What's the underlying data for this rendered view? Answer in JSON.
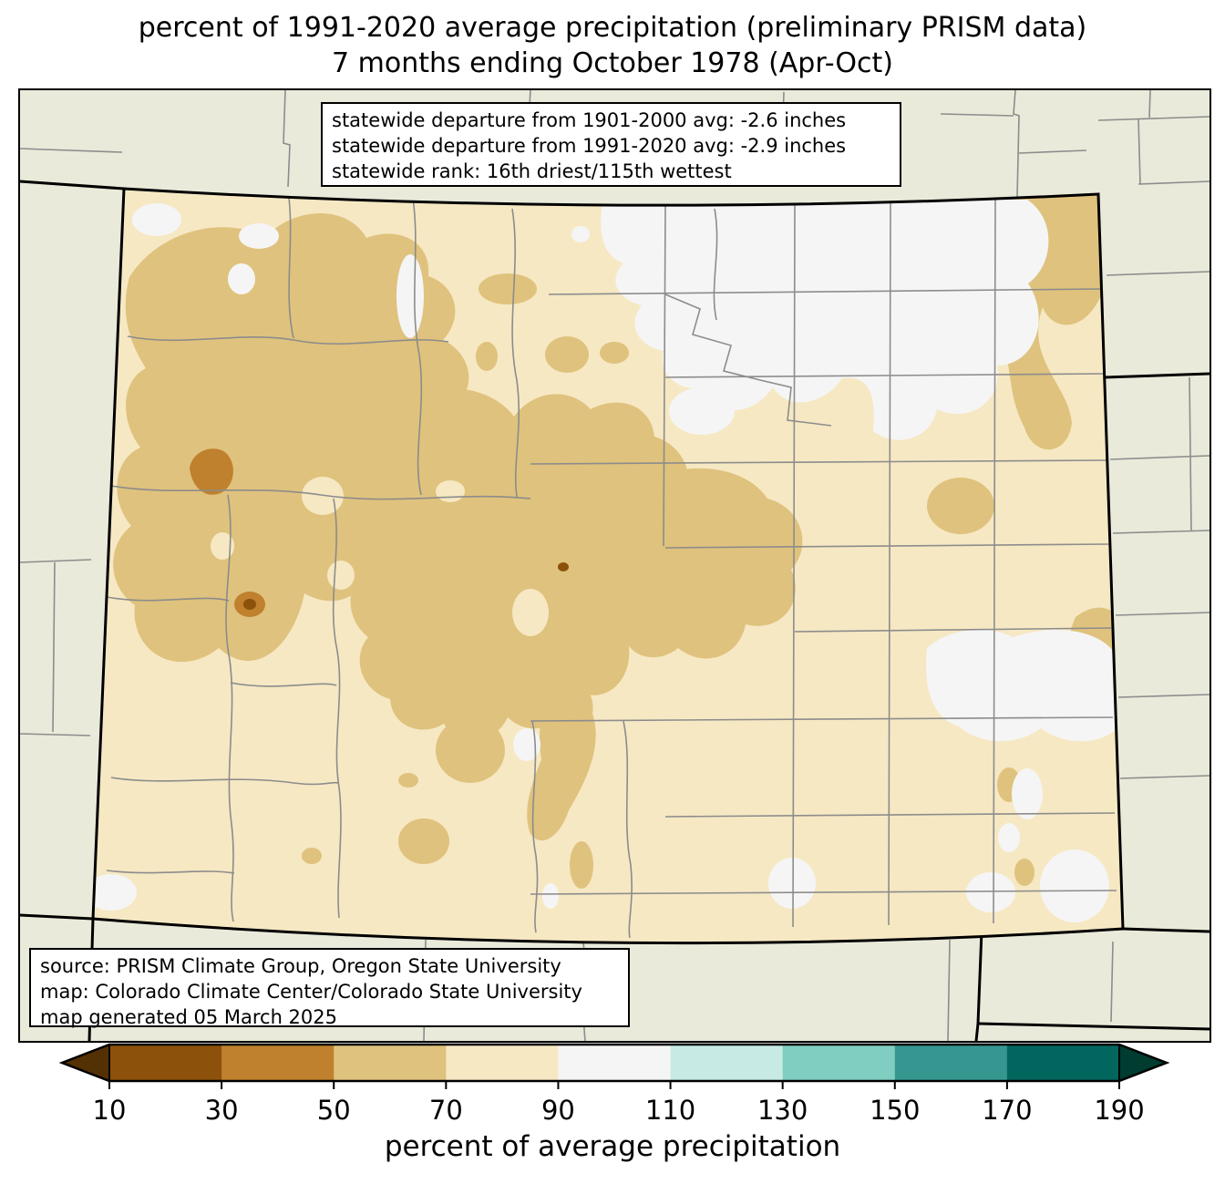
{
  "title": {
    "line1": "percent of 1991-2020 average precipitation (preliminary PRISM data)",
    "line2": "7 months ending October 1978 (Apr-Oct)"
  },
  "stats_box": {
    "lines": [
      "statewide departure from 1901-2000 avg: -2.6 inches",
      "statewide departure from 1991-2020 avg: -2.9 inches",
      "statewide rank: 16th driest/115th wettest"
    ]
  },
  "source_box": {
    "lines": [
      "source: PRISM Climate Group, Oregon State University",
      "map: Colorado Climate Center/Colorado State University",
      "map generated 05 March 2025"
    ]
  },
  "colorbar": {
    "label": "percent of average precipitation",
    "tick_labels": [
      "10",
      "30",
      "50",
      "70",
      "90",
      "110",
      "130",
      "150",
      "170",
      "190"
    ],
    "segment_colors": [
      "#8c510a",
      "#bf812d",
      "#dfc27d",
      "#f6e8c3",
      "#f5f5f5",
      "#c7eae5",
      "#80cdc1",
      "#35978f",
      "#01665e"
    ],
    "under_arrow_color": "#543005",
    "over_arrow_color": "#003c30"
  },
  "map": {
    "region": "Colorado",
    "palette": {
      "out_of_state": "#eaeadb",
      "pct_10_30": "#8c510a",
      "pct_30_50": "#bf812d",
      "pct_50_70": "#dfc27d",
      "pct_70_90": "#f6e8c3",
      "pct_90_110": "#f5f5f5",
      "county_line": "#8c8c8c",
      "state_line": "#000000"
    }
  }
}
